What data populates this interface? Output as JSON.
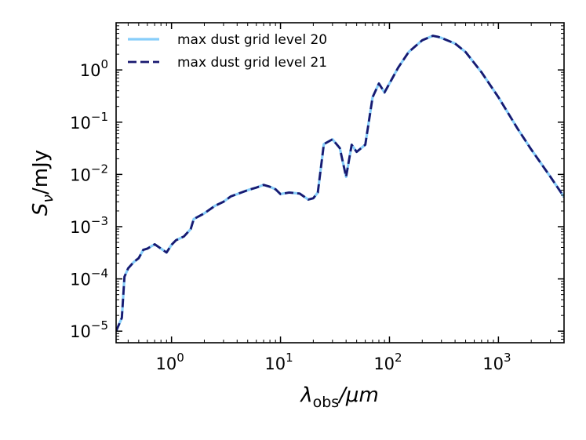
{
  "chart_data": {
    "type": "line",
    "xscale": "log",
    "yscale": "log",
    "xlim": [
      0.31,
      4000
    ],
    "ylim": [
      6e-06,
      8
    ],
    "xlabel": {
      "base": "λ",
      "sub": "obs",
      "tail": "/μm"
    },
    "ylabel": {
      "base": "S",
      "sub": "ν",
      "tail": "/mJy"
    },
    "x_ticks": [
      {
        "value": 1,
        "base": "10",
        "exp": "0"
      },
      {
        "value": 10,
        "base": "10",
        "exp": "1"
      },
      {
        "value": 100,
        "base": "10",
        "exp": "2"
      },
      {
        "value": 1000,
        "base": "10",
        "exp": "3"
      }
    ],
    "y_ticks": [
      {
        "value": 1e-05,
        "base": "10",
        "exp": "−5"
      },
      {
        "value": 0.0001,
        "base": "10",
        "exp": "−4"
      },
      {
        "value": 0.001,
        "base": "10",
        "exp": "−3"
      },
      {
        "value": 0.01,
        "base": "10",
        "exp": "−2"
      },
      {
        "value": 0.1,
        "base": "10",
        "exp": "−1"
      },
      {
        "value": 1,
        "base": "10",
        "exp": "0"
      }
    ],
    "grid": false,
    "legend_position": "top-left",
    "colors": {
      "series1": "#87cefa",
      "series2": "#191970"
    },
    "series": [
      {
        "name": "max dust grid level 20",
        "style": "solid",
        "x": [
          0.31,
          0.35,
          0.37,
          0.4,
          0.45,
          0.5,
          0.55,
          0.6,
          0.7,
          0.8,
          0.9,
          1.0,
          1.1,
          1.3,
          1.5,
          1.6,
          2.0,
          2.5,
          3.0,
          3.5,
          4.0,
          5.0,
          6.0,
          7.0,
          8.0,
          9.0,
          10.0,
          12.0,
          15.0,
          18.0,
          20.0,
          22.0,
          25.0,
          30.0,
          35.0,
          40.0,
          45.0,
          50.0,
          60.0,
          70.0,
          80.0,
          90.0,
          100,
          120,
          150,
          200,
          250,
          280,
          300,
          400,
          500,
          700,
          1000,
          1500,
          2000,
          3000,
          4000
        ],
        "y": [
          1e-05,
          1.8e-05,
          0.00011,
          0.00016,
          0.00021,
          0.00025,
          0.00036,
          0.00038,
          0.00046,
          0.00038,
          0.00032,
          0.00045,
          0.00055,
          0.00065,
          0.0009,
          0.0014,
          0.0018,
          0.0025,
          0.003,
          0.0038,
          0.0042,
          0.005,
          0.0056,
          0.0063,
          0.0058,
          0.0052,
          0.0042,
          0.0045,
          0.0043,
          0.0033,
          0.0035,
          0.0045,
          0.038,
          0.047,
          0.032,
          0.009,
          0.037,
          0.027,
          0.037,
          0.3,
          0.55,
          0.37,
          0.55,
          1.1,
          2.2,
          3.7,
          4.5,
          4.3,
          4.1,
          3.2,
          2.2,
          0.9,
          0.3,
          0.075,
          0.03,
          0.009,
          0.0037
        ]
      },
      {
        "name": "max dust grid level 21",
        "style": "dashed",
        "x": [
          0.31,
          0.35,
          0.37,
          0.4,
          0.45,
          0.5,
          0.55,
          0.6,
          0.7,
          0.8,
          0.9,
          1.0,
          1.1,
          1.3,
          1.5,
          1.6,
          2.0,
          2.5,
          3.0,
          3.5,
          4.0,
          5.0,
          6.0,
          7.0,
          8.0,
          9.0,
          10.0,
          12.0,
          15.0,
          18.0,
          20.0,
          22.0,
          25.0,
          30.0,
          35.0,
          40.0,
          45.0,
          50.0,
          60.0,
          70.0,
          80.0,
          90.0,
          100,
          120,
          150,
          200,
          250,
          280,
          300,
          400,
          500,
          700,
          1000,
          1500,
          2000,
          3000,
          4000
        ],
        "y": [
          1e-05,
          1.8e-05,
          0.00011,
          0.00016,
          0.00021,
          0.00025,
          0.00036,
          0.00038,
          0.00046,
          0.00038,
          0.00032,
          0.00045,
          0.00055,
          0.00065,
          0.0009,
          0.0014,
          0.0018,
          0.0025,
          0.003,
          0.0038,
          0.0042,
          0.005,
          0.0056,
          0.0063,
          0.0058,
          0.0052,
          0.0042,
          0.0045,
          0.0043,
          0.0033,
          0.0035,
          0.0045,
          0.038,
          0.047,
          0.032,
          0.009,
          0.037,
          0.027,
          0.037,
          0.3,
          0.55,
          0.37,
          0.55,
          1.1,
          2.2,
          3.7,
          4.5,
          4.3,
          4.1,
          3.2,
          2.2,
          0.9,
          0.3,
          0.075,
          0.03,
          0.009,
          0.0037
        ]
      }
    ]
  }
}
